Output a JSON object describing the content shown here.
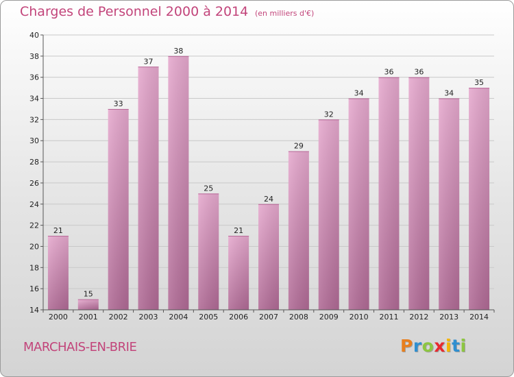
{
  "chart_data": {
    "type": "bar",
    "title": "Charges de Personnel 2000 à 2014",
    "subtitle": "(en milliers d'€)",
    "categories": [
      "2000",
      "2001",
      "2002",
      "2003",
      "2004",
      "2005",
      "2006",
      "2007",
      "2008",
      "2009",
      "2010",
      "2011",
      "2012",
      "2013",
      "2014"
    ],
    "values": [
      21,
      15,
      33,
      37,
      38,
      25,
      21,
      24,
      29,
      32,
      34,
      36,
      36,
      34,
      35
    ],
    "ylim": [
      14,
      40
    ],
    "yticks": [
      14,
      16,
      18,
      20,
      22,
      24,
      26,
      28,
      30,
      32,
      34,
      36,
      38,
      40
    ],
    "grid": true,
    "bar_color": "#c98cb2"
  },
  "footer": {
    "commune": "MARCHAIS-EN-BRIE",
    "logo_letters": [
      "P",
      "r",
      "o",
      "x",
      "i",
      "t",
      "i"
    ],
    "logo_colors": [
      "#e87f1e",
      "#2f8fd0",
      "#8dc641",
      "#e8292e",
      "#f5b400",
      "#2f8fd0",
      "#8dc641"
    ]
  },
  "colors": {
    "title": "#c2447a",
    "bar_light": "#e6a9ce",
    "bar_dark": "#b06a95"
  }
}
